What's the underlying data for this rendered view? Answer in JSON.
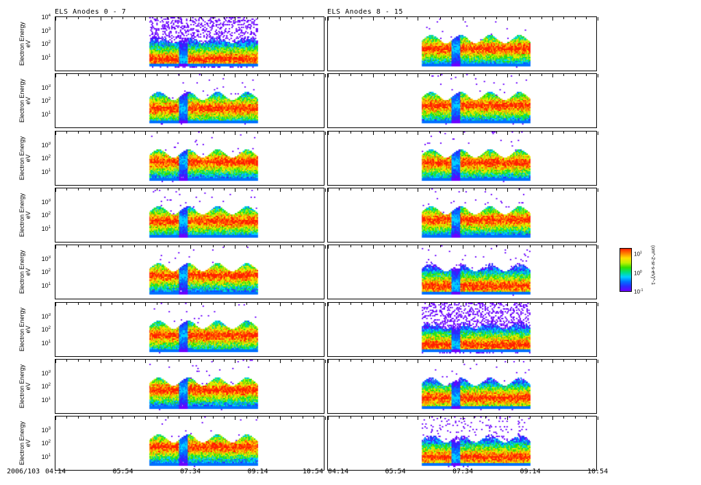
{
  "chart_data": {
    "type": "heatmap",
    "title_left": "ELS Anodes 0 - 7",
    "title_right": "ELS Anodes 8 - 15",
    "ylabel": "Electron Energy",
    "yunit": "eV",
    "yscale": "log",
    "ylim": [
      1,
      10000
    ],
    "yticks": [
      "10^0",
      "10^1",
      "10^2",
      "10^3",
      "10^4"
    ],
    "date_label": "2006/103",
    "xticks": [
      "04:14",
      "05:54",
      "07:34",
      "09:14",
      "10:54"
    ],
    "xlim": [
      "04:14",
      "10:54"
    ],
    "data_interval": [
      "06:34",
      "09:14"
    ],
    "data_gap": [
      "07:18",
      "07:30"
    ],
    "colorbar": {
      "ticks": [
        "10^-1",
        "10^0",
        "10^1"
      ],
      "label": "(cm^-2-sr-s-eV)^-1",
      "colors": [
        "#6a00ff",
        "#2a2aff",
        "#0070ff",
        "#00d0ff",
        "#00e080",
        "#30e000",
        "#c0f000",
        "#ffe000",
        "#ff8000",
        "#ff2000"
      ]
    },
    "panels": [
      {
        "anode": 0,
        "column": "left",
        "peak_eV": 8,
        "background_noise": "high",
        "start": "06:34"
      },
      {
        "anode": 1,
        "column": "left",
        "peak_eV": 30,
        "background_noise": "low",
        "start": "06:34"
      },
      {
        "anode": 2,
        "column": "left",
        "peak_eV": 60,
        "background_noise": "low",
        "start": "06:34"
      },
      {
        "anode": 3,
        "column": "left",
        "peak_eV": 40,
        "background_noise": "low",
        "start": "06:34"
      },
      {
        "anode": 4,
        "column": "left",
        "peak_eV": 60,
        "background_noise": "low",
        "start": "06:34"
      },
      {
        "anode": 5,
        "column": "left",
        "peak_eV": 40,
        "background_noise": "low",
        "start": "06:34"
      },
      {
        "anode": 6,
        "column": "left",
        "peak_eV": 60,
        "background_noise": "low",
        "start": "06:34"
      },
      {
        "anode": 7,
        "column": "left",
        "peak_eV": 60,
        "background_noise": "low",
        "start": "06:34"
      },
      {
        "anode": 8,
        "column": "right",
        "peak_eV": 50,
        "background_noise": "low",
        "start": "06:34"
      },
      {
        "anode": 9,
        "column": "right",
        "peak_eV": 50,
        "background_noise": "low",
        "start": "06:34"
      },
      {
        "anode": 10,
        "column": "right",
        "peak_eV": 50,
        "background_noise": "low",
        "start": "06:34"
      },
      {
        "anode": 11,
        "column": "right",
        "peak_eV": 50,
        "background_noise": "low",
        "start": "06:34"
      },
      {
        "anode": 12,
        "column": "right",
        "peak_eV": 10,
        "background_noise": "low",
        "start": "06:34"
      },
      {
        "anode": 13,
        "column": "right",
        "peak_eV": 8,
        "background_noise": "high",
        "start": "06:34"
      },
      {
        "anode": 14,
        "column": "right",
        "peak_eV": 15,
        "background_noise": "low",
        "start": "06:34"
      },
      {
        "anode": 15,
        "column": "right",
        "peak_eV": 10,
        "background_noise": "medium",
        "start": "06:34"
      }
    ]
  }
}
